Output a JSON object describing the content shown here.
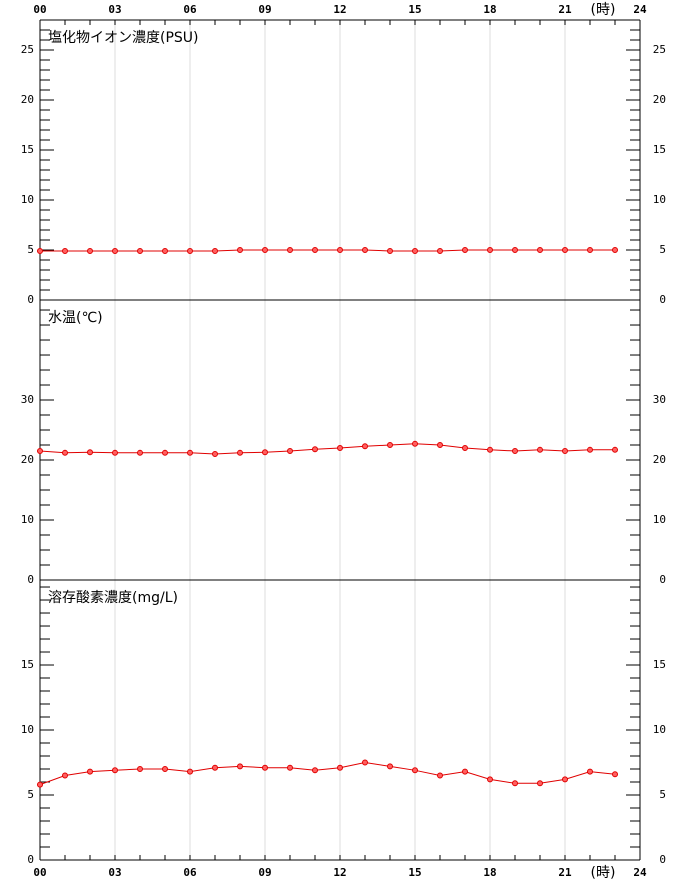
{
  "chart_data": [
    {
      "type": "line",
      "title": "塩化物イオン濃度(PSU)",
      "x_label": "(時)",
      "x": [
        0,
        1,
        2,
        3,
        4,
        5,
        6,
        7,
        8,
        9,
        10,
        11,
        12,
        13,
        14,
        15,
        16,
        17,
        18,
        19,
        20,
        21,
        22,
        23
      ],
      "xlim": [
        0,
        24
      ],
      "xticks": [
        {
          "value": 0,
          "label": "00"
        },
        {
          "value": 3,
          "label": "03"
        },
        {
          "value": 6,
          "label": "06"
        },
        {
          "value": 9,
          "label": "09"
        },
        {
          "value": 12,
          "label": "12"
        },
        {
          "value": 15,
          "label": "15"
        },
        {
          "value": 18,
          "label": "18"
        },
        {
          "value": 21,
          "label": "21"
        },
        24
      ],
      "minor_x_step": 1,
      "ylim": [
        0,
        28
      ],
      "yticks": [
        0,
        5,
        10,
        15,
        20,
        25
      ],
      "minor_step": 1,
      "series": [
        {
          "color": "#e00000",
          "values": [
            4.9,
            4.9,
            4.9,
            4.9,
            4.9,
            4.9,
            4.9,
            4.9,
            5.0,
            5.0,
            5.0,
            5.0,
            5.0,
            5.0,
            4.9,
            4.9,
            4.9,
            5.0,
            5.0,
            5.0,
            5.0,
            5.0,
            5.0,
            5.0
          ]
        }
      ]
    },
    {
      "type": "line",
      "title": "水温(℃)",
      "x": [
        0,
        1,
        2,
        3,
        4,
        5,
        6,
        7,
        8,
        9,
        10,
        11,
        12,
        13,
        14,
        15,
        16,
        17,
        18,
        19,
        20,
        21,
        22,
        23
      ],
      "xlim": [
        0,
        24
      ],
      "xticks": [
        0,
        3,
        6,
        9,
        12,
        15,
        18,
        21,
        24
      ],
      "ylim": [
        0,
        46.67
      ],
      "yticks": [
        0,
        10,
        20,
        30
      ],
      "minor_step": 2.5,
      "series": [
        {
          "color": "#e00000",
          "values": [
            21.5,
            21.2,
            21.3,
            21.2,
            21.2,
            21.2,
            21.2,
            21.0,
            21.2,
            21.3,
            21.5,
            21.8,
            22.0,
            22.3,
            22.5,
            22.7,
            22.5,
            22.0,
            21.7,
            21.5,
            21.7,
            21.5,
            21.7,
            21.7
          ]
        }
      ]
    },
    {
      "type": "line",
      "title": "溶存酸素濃度(mg/L)",
      "x_label": "(時)",
      "x": [
        0,
        1,
        2,
        3,
        4,
        5,
        6,
        7,
        8,
        9,
        10,
        11,
        12,
        13,
        14,
        15,
        16,
        17,
        18,
        19,
        20,
        21,
        22,
        23
      ],
      "xlim": [
        0,
        24
      ],
      "xticks": [
        {
          "value": 0,
          "label": "00"
        },
        {
          "value": 3,
          "label": "03"
        },
        {
          "value": 6,
          "label": "06"
        },
        {
          "value": 9,
          "label": "09"
        },
        {
          "value": 12,
          "label": "12"
        },
        {
          "value": 15,
          "label": "15"
        },
        {
          "value": 18,
          "label": "18"
        },
        {
          "value": 21,
          "label": "21"
        },
        24
      ],
      "minor_x_step": 1,
      "ylim": [
        0,
        21.54
      ],
      "yticks": [
        0,
        5,
        10,
        15
      ],
      "minor_step": 1,
      "series": [
        {
          "color": "#e00000",
          "values": [
            5.8,
            6.5,
            6.8,
            6.9,
            7.0,
            7.0,
            6.8,
            7.1,
            7.2,
            7.1,
            7.1,
            6.9,
            7.1,
            7.5,
            7.2,
            6.9,
            6.5,
            6.8,
            6.2,
            5.9,
            5.9,
            6.2,
            6.8,
            6.6
          ]
        }
      ]
    }
  ]
}
